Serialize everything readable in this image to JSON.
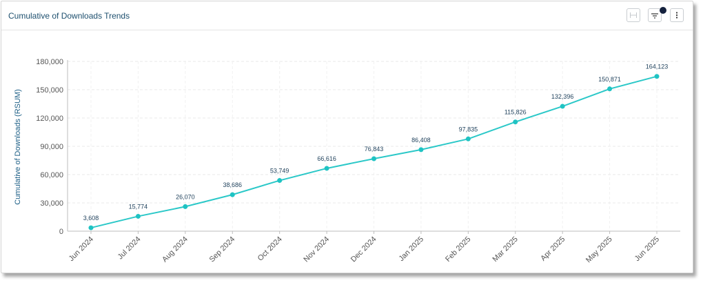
{
  "panel": {
    "title": "Cumulative of Downloads Trends",
    "icons": [
      "fit-width-icon",
      "filter-icon",
      "more-vertical-icon"
    ]
  },
  "colors": {
    "line": "#2bc8c8",
    "marker": "#1fc3c3",
    "filter_badge": "#14213d"
  },
  "chart_data": {
    "type": "line",
    "title": "",
    "xlabel": "",
    "ylabel": "Cumulative of Downloads (RSUM)",
    "categories": [
      "Jun 2024",
      "Jul 2024",
      "Aug 2024",
      "Sep 2024",
      "Oct 2024",
      "Nov 2024",
      "Dec 2024",
      "Jan 2025",
      "Feb 2025",
      "Mar 2025",
      "Apr 2025",
      "May 2025",
      "Jun 2025"
    ],
    "values": [
      3608,
      15774,
      26070,
      38686,
      53749,
      66616,
      76843,
      86408,
      97835,
      115826,
      132396,
      150871,
      164123
    ],
    "value_labels": [
      "3,608",
      "15,774",
      "26,070",
      "38,686",
      "53,749",
      "66,616",
      "76,843",
      "86,408",
      "97,835",
      "115,826",
      "132,396",
      "150,871",
      "164,123"
    ],
    "yticks": [
      0,
      30000,
      60000,
      90000,
      120000,
      150000,
      180000
    ],
    "ytick_labels": [
      "0",
      "30,000",
      "60,000",
      "90,000",
      "120,000",
      "150,000",
      "180,000"
    ],
    "ylim": [
      0,
      180000
    ],
    "grid": true,
    "legend": "none"
  }
}
